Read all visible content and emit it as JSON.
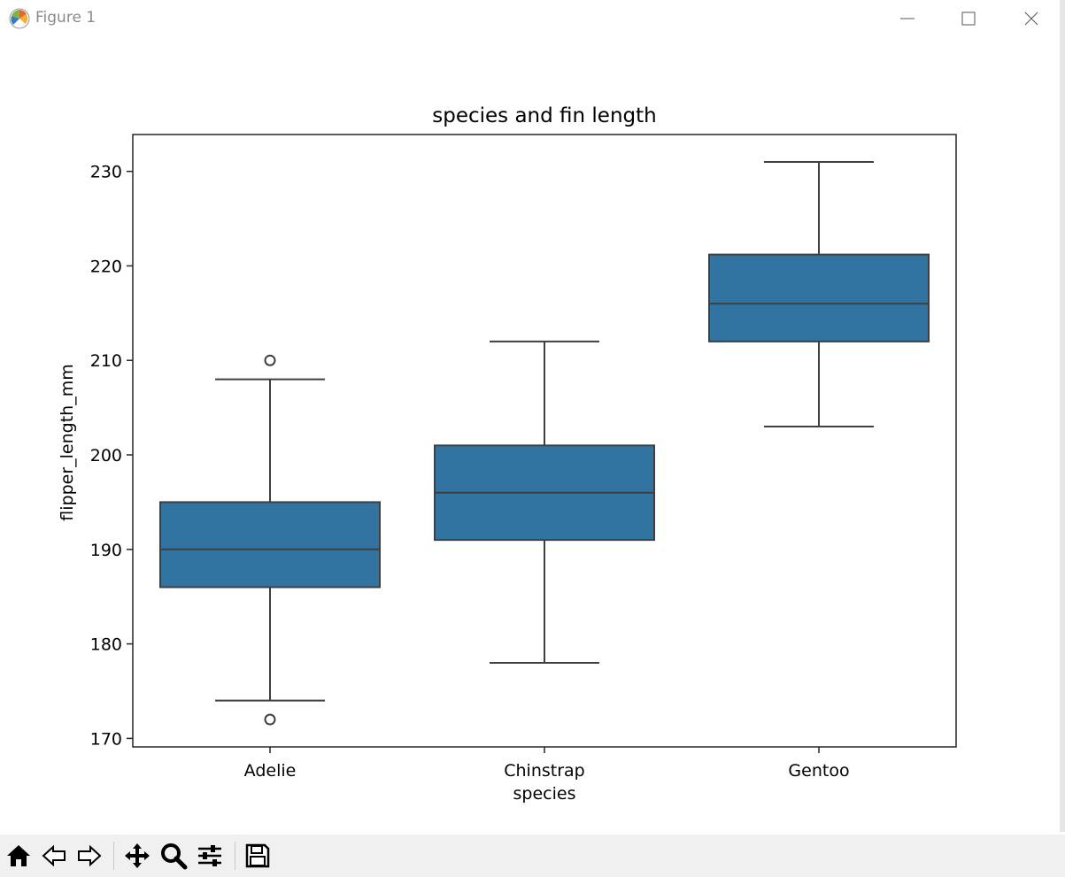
{
  "window": {
    "title": "Figure 1"
  },
  "toolbar": {
    "buttons": [
      "home-icon",
      "back-arrow-icon",
      "forward-arrow-icon",
      "pan-move-icon",
      "zoom-magnifier-icon",
      "configure-subplots-icon",
      "save-floppy-icon"
    ]
  },
  "colors": {
    "box_fill": "#3274a1",
    "line": "#3f3f3f",
    "axes": "#262626"
  },
  "chart_data": {
    "type": "boxplot",
    "title": "species and fin length",
    "xlabel": "species",
    "ylabel": "flipper_length_mm",
    "categories": [
      "Adelie",
      "Chinstrap",
      "Gentoo"
    ],
    "boxes": [
      {
        "category": "Adelie",
        "whisker_low": 174,
        "q1": 186,
        "median": 190,
        "q3": 195,
        "whisker_high": 208,
        "outliers": [
          172,
          210
        ]
      },
      {
        "category": "Chinstrap",
        "whisker_low": 178,
        "q1": 191,
        "median": 196,
        "q3": 201,
        "whisker_high": 212,
        "outliers": []
      },
      {
        "category": "Gentoo",
        "whisker_low": 203,
        "q1": 212,
        "median": 216,
        "q3": 221.2,
        "whisker_high": 231,
        "outliers": []
      }
    ],
    "yticks": [
      170,
      180,
      190,
      200,
      210,
      220,
      230
    ],
    "ytick_labels": [
      "170",
      "180",
      "190",
      "200",
      "210",
      "220",
      "230"
    ],
    "ylim": [
      169.1,
      233.9
    ],
    "grid": false
  }
}
